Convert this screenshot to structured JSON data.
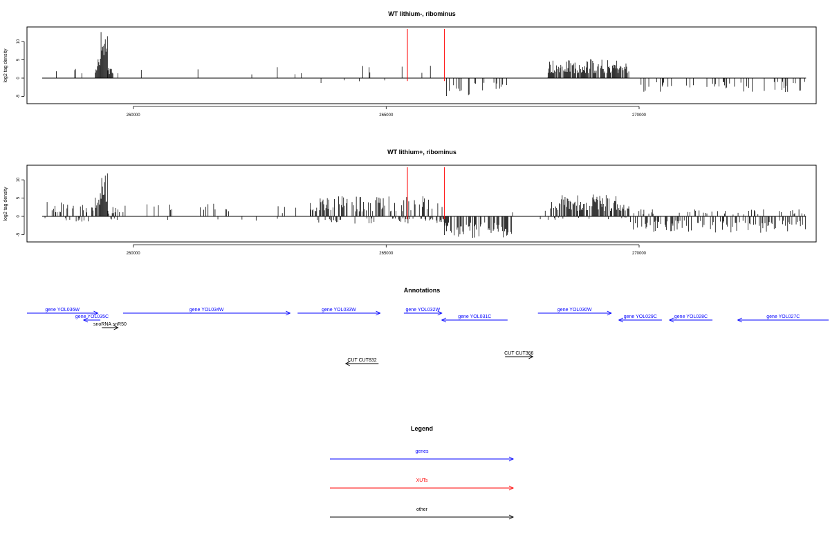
{
  "chart_data": [
    {
      "type": "bar",
      "title": "WT lithium-, ribominus",
      "ylabel": "log2 tag density",
      "xlim": [
        257900,
        273500
      ],
      "ylim": [
        -7,
        14
      ],
      "xticks": [
        260000,
        265000,
        270000
      ],
      "yticks": [
        -5,
        0,
        5,
        10
      ],
      "xut_lines": [
        265420,
        266150
      ],
      "profile": [
        {
          "x0": 258200,
          "x1": 259000,
          "min": 0,
          "max": 3.5,
          "density": 0.12
        },
        {
          "x0": 259250,
          "x1": 259350,
          "min": 0,
          "max": 6,
          "density": 0.9
        },
        {
          "x0": 259350,
          "x1": 259500,
          "min": 0,
          "max": 13.2,
          "density": 1.0
        },
        {
          "x0": 259500,
          "x1": 259600,
          "min": 0,
          "max": 3,
          "density": 0.6
        },
        {
          "x0": 259600,
          "x1": 263600,
          "min": 0,
          "max": 3.5,
          "density": 0.03
        },
        {
          "x0": 263600,
          "x1": 265300,
          "min": -1.5,
          "max": 3.5,
          "density": 0.06
        },
        {
          "x0": 265300,
          "x1": 266150,
          "min": 0,
          "max": 3.5,
          "density": 0.05
        },
        {
          "x0": 266150,
          "x1": 267400,
          "min": -5,
          "max": 0,
          "density": 0.25
        },
        {
          "x0": 267400,
          "x1": 268200,
          "min": 0,
          "max": 1,
          "density": 0.01
        },
        {
          "x0": 268200,
          "x1": 269800,
          "min": 0,
          "max": 5.2,
          "density": 0.85
        },
        {
          "x0": 269800,
          "x1": 273300,
          "min": -4,
          "max": 0,
          "density": 0.15
        }
      ]
    },
    {
      "type": "bar",
      "title": "WT lithium+, ribominus",
      "ylabel": "log2 tag density",
      "xlim": [
        257900,
        273500
      ],
      "ylim": [
        -7,
        14
      ],
      "xticks": [
        260000,
        265000,
        270000
      ],
      "yticks": [
        -5,
        0,
        5,
        10
      ],
      "xut_lines": [
        265420,
        266150
      ],
      "profile": [
        {
          "x0": 258200,
          "x1": 259250,
          "min": -1.5,
          "max": 4,
          "density": 0.5
        },
        {
          "x0": 259250,
          "x1": 259350,
          "min": -2,
          "max": 7,
          "density": 0.9
        },
        {
          "x0": 259350,
          "x1": 259500,
          "min": 0,
          "max": 13.5,
          "density": 1.0
        },
        {
          "x0": 259500,
          "x1": 259700,
          "min": -2,
          "max": 3,
          "density": 0.5
        },
        {
          "x0": 259700,
          "x1": 263500,
          "min": -1.5,
          "max": 3.5,
          "density": 0.1
        },
        {
          "x0": 263500,
          "x1": 266150,
          "min": -2,
          "max": 5.5,
          "density": 0.7
        },
        {
          "x0": 266150,
          "x1": 267500,
          "min": -6,
          "max": 0,
          "density": 0.6
        },
        {
          "x0": 267500,
          "x1": 268200,
          "min": -2,
          "max": 2,
          "density": 0.05
        },
        {
          "x0": 268200,
          "x1": 269800,
          "min": -1,
          "max": 6,
          "density": 0.85
        },
        {
          "x0": 269800,
          "x1": 273300,
          "min": -4.5,
          "max": 2,
          "density": 0.55
        }
      ]
    }
  ],
  "annotations": {
    "title": "Annotations",
    "features": [
      {
        "label": "gene YOL036W",
        "type": "gene",
        "strand": "+",
        "start": 257900,
        "end": 259300,
        "row": 0
      },
      {
        "label": "gene YOL035C",
        "type": "gene",
        "strand": "-",
        "start": 259020,
        "end": 259350,
        "row": 1
      },
      {
        "label": "snoRNA snR50",
        "type": "other",
        "strand": "+",
        "start": 259380,
        "end": 259700,
        "row": 2
      },
      {
        "label": "gene YOL034W",
        "type": "gene",
        "strand": "+",
        "start": 259800,
        "end": 263100,
        "row": 0
      },
      {
        "label": "gene YOL033W",
        "type": "gene",
        "strand": "+",
        "start": 263250,
        "end": 264880,
        "row": 0
      },
      {
        "label": "gene YOL032W",
        "type": "gene",
        "strand": "+",
        "start": 265350,
        "end": 266100,
        "row": 0
      },
      {
        "label": "gene YOL031C",
        "type": "gene",
        "strand": "-",
        "start": 266100,
        "end": 267400,
        "row": 1
      },
      {
        "label": "gene YOL030W",
        "type": "gene",
        "strand": "+",
        "start": 268000,
        "end": 269450,
        "row": 0
      },
      {
        "label": "gene YOL029C",
        "type": "gene",
        "strand": "-",
        "start": 269600,
        "end": 270450,
        "row": 1
      },
      {
        "label": "gene YOL028C",
        "type": "gene",
        "strand": "-",
        "start": 270600,
        "end": 271450,
        "row": 1
      },
      {
        "label": "gene YOL027C",
        "type": "gene",
        "strand": "-",
        "start": 271950,
        "end": 273850,
        "row": 1
      },
      {
        "label": "CUT CUT832",
        "type": "other",
        "strand": "-",
        "start": 264200,
        "end": 264850,
        "row": 5
      },
      {
        "label": "CUT CUT366",
        "type": "other",
        "strand": "+",
        "start": 267350,
        "end": 267900,
        "row": 4
      }
    ]
  },
  "legend": {
    "title": "Legend",
    "items": [
      {
        "label": "genes",
        "color": "#0000ff"
      },
      {
        "label": "XUTs",
        "color": "#ff0000"
      },
      {
        "label": "other",
        "color": "#000000"
      }
    ]
  },
  "colors": {
    "gene": "#0000ff",
    "xut": "#ff0000",
    "other": "#000000",
    "axis": "#000000"
  }
}
